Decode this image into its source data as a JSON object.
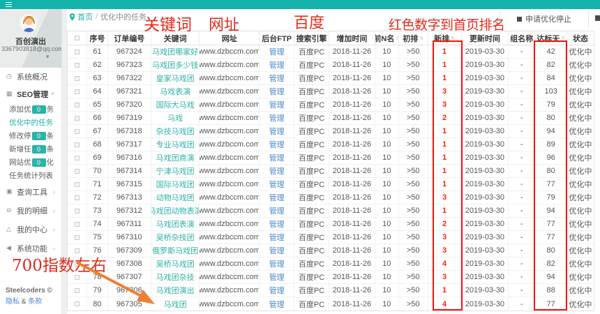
{
  "topbar": {
    "accent_color": "#13b2ab"
  },
  "sidebar": {
    "user": {
      "name": "百创演出",
      "email": "3367903818@qq.com",
      "caret": "▾"
    },
    "menu": [
      {
        "icon": "clock-icon",
        "glyph": "◷",
        "label": "系统概况"
      },
      {
        "icon": "grid-icon",
        "glyph": "▦",
        "label": "SEO管理",
        "caret": "˅"
      }
    ],
    "submenu": [
      {
        "pre": "添加优",
        "badge": "0",
        "post": "务"
      },
      {
        "label": "优化中的任务"
      },
      {
        "pre": "修改停",
        "badge": "0",
        "post": "条"
      },
      {
        "pre": "新增任",
        "badge": "0",
        "post": "条"
      },
      {
        "pre": "网站优",
        "badge": "0",
        "post": "化"
      },
      {
        "label": "任务统计列表"
      }
    ],
    "menu2": [
      {
        "icon": "tool-icon",
        "glyph": "▣",
        "label": "查询工具",
        "chev": "›"
      },
      {
        "icon": "detail-icon",
        "glyph": "⊖",
        "label": "我的明细",
        "chev": "›"
      },
      {
        "icon": "center-icon",
        "glyph": "△",
        "label": "我的中心",
        "chev": "›"
      },
      {
        "icon": "speaker-icon",
        "glyph": "◀",
        "label": "系统功能",
        "chev": "›"
      }
    ],
    "footer": {
      "brand": "Steelcoders ©",
      "privacy": "隐私",
      "amp": "&",
      "terms": "条款"
    }
  },
  "breadcrumb": {
    "home": "首页",
    "sep": "/",
    "current": "优化中的任务"
  },
  "toolbar": {
    "stop_label": "申请优化停止"
  },
  "annotations": {
    "keyword": "关键词",
    "url": "网址",
    "baidu": "百度",
    "red_numbers": "红色数字到首页排名",
    "index700": "700指数左右",
    "annotation_color": "#e02b1d",
    "box_color": "#f7100c",
    "arrow_color": "#ed8033"
  },
  "table": {
    "headers": [
      {
        "label": "",
        "type": "checkbox"
      },
      {
        "label": "序号"
      },
      {
        "label": "订单编号"
      },
      {
        "label": "关键词"
      },
      {
        "label": "网址"
      },
      {
        "label": "后台FTP"
      },
      {
        "label": "搜索引擎"
      },
      {
        "label": "增加时间"
      },
      {
        "label": "前N名",
        "sort": true
      },
      {
        "label": "初排",
        "sort": true
      },
      {
        "label": "新排",
        "sort": true
      },
      {
        "label": "更新时间"
      },
      {
        "label": "组名称"
      },
      {
        "label": "达标天",
        "sort": true
      },
      {
        "label": "状态"
      }
    ],
    "common": {
      "url": "www.dzbccm.com",
      "ftp_label": "管理",
      "engine": "百度PC",
      "added": "2018-11-26",
      "top_n": "10",
      "init_rank": ">50",
      "updated": "2019-03-30",
      "group": "-",
      "status": "优化中"
    },
    "rows": [
      {
        "seq": "61",
        "order": "967324",
        "keyword": "马戏团哪家好",
        "new_rank": "1",
        "days": "42"
      },
      {
        "seq": "62",
        "order": "967323",
        "keyword": "马戏团多少钱",
        "new_rank": "1",
        "days": "82"
      },
      {
        "seq": "63",
        "order": "967322",
        "keyword": "皇家马戏团",
        "new_rank": "1",
        "days": "84"
      },
      {
        "seq": "64",
        "order": "967321",
        "keyword": "马戏表演",
        "new_rank": "3",
        "days": "103"
      },
      {
        "seq": "65",
        "order": "967320",
        "keyword": "国际大马戏",
        "new_rank": "3",
        "days": "79"
      },
      {
        "seq": "66",
        "order": "967319",
        "keyword": "马戏",
        "new_rank": "2",
        "days": "80"
      },
      {
        "seq": "67",
        "order": "967318",
        "keyword": "杂技马戏团",
        "new_rank": "1",
        "days": "94"
      },
      {
        "seq": "68",
        "order": "967317",
        "keyword": "专业马戏团",
        "new_rank": "1",
        "days": "89"
      },
      {
        "seq": "69",
        "order": "967316",
        "keyword": "马戏团商演",
        "new_rank": "1",
        "days": "96"
      },
      {
        "seq": "70",
        "order": "967314",
        "keyword": "宁津马戏团",
        "new_rank": "1",
        "days": "80"
      },
      {
        "seq": "71",
        "order": "967315",
        "keyword": "国际马戏团",
        "new_rank": "1",
        "days": "77"
      },
      {
        "seq": "72",
        "order": "967313",
        "keyword": "动物马戏团",
        "new_rank": "3",
        "days": "79"
      },
      {
        "seq": "73",
        "order": "967312",
        "keyword": "马戏团动物表演",
        "new_rank": "1",
        "days": "94"
      },
      {
        "seq": "74",
        "order": "967311",
        "keyword": "马戏团表演",
        "new_rank": "2",
        "days": "77"
      },
      {
        "seq": "75",
        "order": "967310",
        "keyword": "吴桥杂技团",
        "new_rank": "3",
        "days": "77"
      },
      {
        "seq": "76",
        "order": "967309",
        "keyword": "俄罗斯马戏团",
        "new_rank": "3",
        "days": "80"
      },
      {
        "seq": "77",
        "order": "967308",
        "keyword": "吴桥马戏团",
        "new_rank": "4",
        "days": "82"
      },
      {
        "seq": "78",
        "order": "967307",
        "keyword": "马戏团杂技",
        "new_rank": "3",
        "days": "94"
      },
      {
        "seq": "79",
        "order": "967306",
        "keyword": "马戏团演出",
        "new_rank": "1",
        "days": "88"
      },
      {
        "seq": "80",
        "order": "967305",
        "keyword": "马戏团",
        "new_rank": "4",
        "days": "77"
      }
    ]
  }
}
